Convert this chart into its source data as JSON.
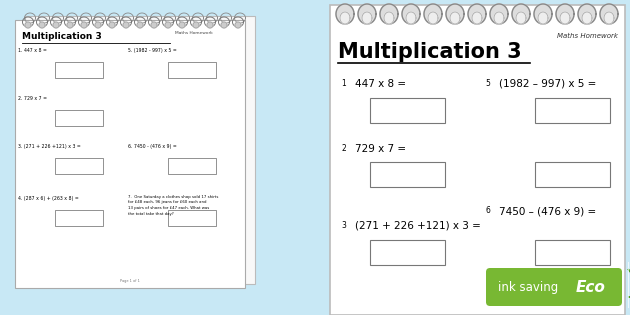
{
  "bg_color": "#c8e8f5",
  "title": "Multiplication 3",
  "subtitle": "Maths Homework",
  "sheet_color": "#ffffff",
  "spiral_color": "#888888",
  "spiral_dark": "#555555",
  "ink_saving_bg": "#78b833",
  "ink_saving_text": "ink saving",
  "eco_text": "Eco",
  "leaf_color": "#4a9e20",
  "main_left_questions": [
    [
      1,
      "447 x 8 ="
    ],
    [
      2,
      "729 x 7 ="
    ],
    [
      3,
      "(271 + 226 +121) x 3 ="
    ]
  ],
  "main_right_questions": [
    [
      5,
      "(1982 – 997) x 5 ="
    ],
    [
      6,
      "7450 – (476 x 9) ="
    ]
  ],
  "small_left_questions": [
    [
      1,
      "447 x 8 ="
    ],
    [
      2,
      "729 x 7 ="
    ],
    [
      3,
      "(271 + 226 +121) x 3 ="
    ],
    [
      4,
      "(287 x 6) + (263 x 8) ="
    ]
  ],
  "small_right_questions": [
    [
      5,
      "(1982 - 997) x 5 ="
    ],
    [
      6,
      "7450 - (476 x 9) ="
    ]
  ],
  "word_problem": "7.  One Saturday a clothes shop sold 17 shirts\nfor £48 each, 96 jeans for £60 each and\n13 pairs of shoes for £47 each. What was\nthe total take that day?"
}
